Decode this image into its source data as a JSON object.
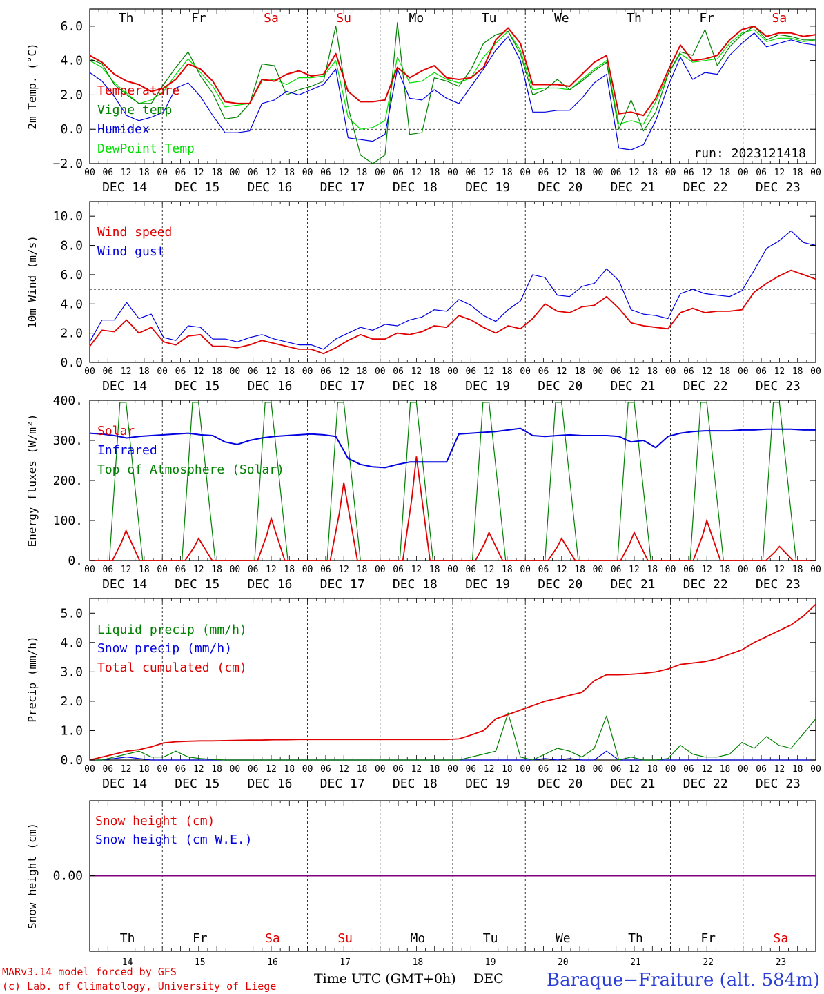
{
  "chart_data": [
    {
      "type": "line",
      "ylabel": "2m Temp. (°C)",
      "ylim": [
        -2,
        7
      ],
      "yticks": [
        "−2.0",
        "0.0",
        "2.0",
        "4.0",
        "6.0"
      ],
      "reference_line": 0,
      "annotation": "run: 2023121418",
      "x_unit": "hour since 2023-12-14 00 UTC (3-hourly)",
      "series": [
        {
          "name": "Temperature",
          "color": "#e00000",
          "values": [
            4.3,
            3.9,
            3.2,
            2.8,
            2.6,
            2.2,
            2.4,
            2.9,
            3.8,
            3.5,
            2.8,
            1.6,
            1.5,
            1.5,
            2.9,
            2.8,
            3.2,
            3.4,
            3.1,
            3.2,
            4.4,
            2.2,
            1.6,
            1.6,
            1.7,
            3.6,
            3.0,
            3.4,
            3.7,
            3.0,
            2.9,
            3.0,
            3.6,
            5.2,
            5.9,
            5.0,
            2.6,
            2.6,
            2.6,
            2.5,
            3.2,
            3.9,
            4.3,
            0.9,
            1.0,
            0.8,
            1.8,
            3.4,
            4.9,
            4.0,
            4.1,
            4.3,
            5.2,
            5.8,
            6.0,
            5.4,
            5.6,
            5.6,
            5.4,
            5.5
          ]
        },
        {
          "name": "Vigne temp",
          "color": "#008000",
          "values": [
            4.1,
            3.8,
            2.6,
            2.0,
            1.5,
            1.5,
            2.6,
            3.6,
            4.5,
            3.1,
            2.1,
            0.6,
            0.7,
            1.5,
            3.8,
            3.7,
            2.0,
            2.3,
            2.5,
            2.8,
            6.0,
            1.3,
            -1.5,
            -2.0,
            -1.5,
            6.2,
            -0.3,
            -0.2,
            3.0,
            2.8,
            2.5,
            3.5,
            5.0,
            5.5,
            5.7,
            4.4,
            2.0,
            2.3,
            2.9,
            2.3,
            2.8,
            3.4,
            3.9,
            0.0,
            1.7,
            -0.1,
            1.0,
            3.2,
            4.5,
            4.3,
            5.8,
            3.7,
            4.8,
            5.5,
            6.0,
            5.2,
            5.5,
            5.4,
            5.2,
            5.2
          ]
        },
        {
          "name": "Humidex",
          "color": "#0000e0",
          "values": [
            3.3,
            2.8,
            1.9,
            0.8,
            0.5,
            0.7,
            1.0,
            2.4,
            2.7,
            1.9,
            0.8,
            -0.2,
            -0.2,
            -0.1,
            1.5,
            1.7,
            2.2,
            2.0,
            2.3,
            2.6,
            3.5,
            -0.5,
            -0.6,
            -0.7,
            -0.3,
            3.5,
            1.8,
            1.7,
            2.3,
            1.8,
            1.5,
            2.5,
            3.5,
            4.6,
            5.4,
            4.0,
            1.0,
            1.0,
            1.1,
            1.1,
            1.8,
            2.7,
            3.2,
            -1.1,
            -1.2,
            -0.9,
            0.5,
            2.5,
            4.2,
            2.9,
            3.3,
            3.2,
            4.3,
            5.0,
            5.6,
            4.8,
            5.0,
            5.2,
            5.0,
            4.9
          ]
        },
        {
          "name": "DewPoint Temp",
          "color": "#00e000",
          "values": [
            4.0,
            3.6,
            2.7,
            2.1,
            1.5,
            1.7,
            2.2,
            3.2,
            4.1,
            3.3,
            2.5,
            1.3,
            1.4,
            1.5,
            2.8,
            2.9,
            2.6,
            3.0,
            3.0,
            3.1,
            4.0,
            0.7,
            0.0,
            0.1,
            0.5,
            4.2,
            2.7,
            2.8,
            3.3,
            2.9,
            2.7,
            3.0,
            4.2,
            5.0,
            5.7,
            4.6,
            2.3,
            2.4,
            2.4,
            2.3,
            2.9,
            3.5,
            4.0,
            0.3,
            0.5,
            0.3,
            1.6,
            3.2,
            4.4,
            3.9,
            4.0,
            4.1,
            5.0,
            5.6,
            5.8,
            5.1,
            5.3,
            5.3,
            5.1,
            5.2
          ]
        }
      ]
    },
    {
      "type": "line",
      "ylabel": "10m Wind (m/s)",
      "ylim": [
        0,
        11
      ],
      "yticks": [
        "0.0",
        "2.0",
        "4.0",
        "6.0",
        "8.0",
        "10.0"
      ],
      "reference_line": 5,
      "series": [
        {
          "name": "Wind speed",
          "color": "#e00000",
          "values": [
            1.1,
            2.2,
            2.1,
            2.9,
            2.0,
            2.4,
            1.4,
            1.2,
            1.8,
            1.9,
            1.1,
            1.1,
            1.0,
            1.2,
            1.5,
            1.3,
            1.1,
            0.9,
            0.9,
            0.6,
            1.0,
            1.5,
            1.9,
            1.6,
            1.6,
            2.0,
            1.9,
            2.1,
            2.5,
            2.4,
            3.2,
            2.9,
            2.4,
            2.0,
            2.5,
            2.3,
            3.0,
            4.0,
            3.5,
            3.4,
            3.8,
            3.9,
            4.5,
            3.7,
            2.7,
            2.5,
            2.4,
            2.3,
            3.4,
            3.7,
            3.4,
            3.5,
            3.5,
            3.6,
            4.8,
            5.4,
            5.9,
            6.3,
            6.0,
            5.7
          ]
        },
        {
          "name": "Wind gust",
          "color": "#0000e0",
          "values": [
            1.4,
            2.9,
            2.9,
            4.1,
            3.0,
            3.3,
            1.7,
            1.5,
            2.5,
            2.4,
            1.6,
            1.6,
            1.4,
            1.7,
            1.9,
            1.6,
            1.4,
            1.2,
            1.2,
            0.9,
            1.6,
            2.0,
            2.4,
            2.2,
            2.6,
            2.5,
            2.9,
            3.1,
            3.6,
            3.5,
            4.3,
            3.9,
            3.2,
            2.8,
            3.6,
            4.2,
            6.0,
            5.8,
            4.6,
            4.5,
            5.2,
            5.4,
            6.4,
            5.6,
            3.6,
            3.3,
            3.2,
            3.0,
            4.7,
            5.0,
            4.7,
            4.6,
            4.5,
            4.9,
            6.3,
            7.8,
            8.3,
            9.0,
            8.2,
            8.0
          ]
        }
      ]
    },
    {
      "type": "line",
      "ylabel": "Energy fluxes (W/m²)",
      "ylim": [
        0,
        400
      ],
      "yticks": [
        "0.",
        "100.",
        "200.",
        "300.",
        "400."
      ],
      "solar_peaks": [
        75,
        55,
        105,
        195,
        260,
        70,
        55,
        70,
        100,
        35
      ],
      "toa_peak": 395,
      "series": [
        {
          "name": "Solar",
          "color": "#e00000"
        },
        {
          "name": "Infrared",
          "color": "#0000e0",
          "values": [
            318,
            316,
            312,
            306,
            310,
            312,
            314,
            316,
            318,
            314,
            312,
            296,
            290,
            300,
            306,
            310,
            312,
            314,
            316,
            314,
            310,
            255,
            240,
            234,
            232,
            240,
            246,
            246,
            246,
            246,
            316,
            318,
            320,
            322,
            326,
            330,
            312,
            310,
            312,
            314,
            312,
            312,
            312,
            310,
            296,
            300,
            282,
            310,
            318,
            322,
            324,
            324,
            324,
            326,
            326,
            328,
            328,
            328,
            326,
            326
          ]
        },
        {
          "name": "Top of Atmosphere (Solar)",
          "color": "#008000"
        }
      ]
    },
    {
      "type": "line",
      "ylabel": "Precip (mm/h)",
      "ylim": [
        0,
        5.5
      ],
      "yticks": [
        "0.0",
        "1.0",
        "2.0",
        "3.0",
        "4.0",
        "5.0"
      ],
      "series": [
        {
          "name": "Liquid precip (mm/h)",
          "color": "#008000",
          "values": [
            0.0,
            0.0,
            0.1,
            0.2,
            0.3,
            0.1,
            0.1,
            0.3,
            0.1,
            0.05,
            0.02,
            0.0,
            0.0,
            0.0,
            0.0,
            0.0,
            0.0,
            0.0,
            0.0,
            0.0,
            0.0,
            0.0,
            0.0,
            0.0,
            0.0,
            0.0,
            0.0,
            0.0,
            0.0,
            0.0,
            0.0,
            0.1,
            0.2,
            0.3,
            1.6,
            0.1,
            0.0,
            0.2,
            0.4,
            0.3,
            0.1,
            0.4,
            1.5,
            0.0,
            0.1,
            0.0,
            0.0,
            0.05,
            0.5,
            0.2,
            0.1,
            0.1,
            0.2,
            0.6,
            0.4,
            0.8,
            0.5,
            0.4,
            0.9,
            1.4
          ]
        },
        {
          "name": "Snow precip (mm/h)",
          "color": "#0000e0",
          "values": [
            0.0,
            0.0,
            0.05,
            0.1,
            0.05,
            0.0,
            0.0,
            0.0,
            0.0,
            0.0,
            0.0,
            0.0,
            0.0,
            0.0,
            0.0,
            0.0,
            0.0,
            0.0,
            0.0,
            0.0,
            0.0,
            0.0,
            0.0,
            0.0,
            0.0,
            0.0,
            0.0,
            0.0,
            0.0,
            0.0,
            0.0,
            0.0,
            0.0,
            0.0,
            0.0,
            0.0,
            0.0,
            0.05,
            0.0,
            0.05,
            0.0,
            0.0,
            0.3,
            0.0,
            0.0,
            0.0,
            0.0,
            0.0,
            0.0,
            0.0,
            0.0,
            0.0,
            0.0,
            0.0,
            0.0,
            0.0,
            0.0,
            0.0,
            0.0,
            0.0
          ]
        },
        {
          "name": "Total cumulated (cm)",
          "color": "#e00000",
          "values": [
            0.0,
            0.1,
            0.2,
            0.3,
            0.35,
            0.45,
            0.58,
            0.62,
            0.64,
            0.65,
            0.65,
            0.66,
            0.67,
            0.68,
            0.68,
            0.69,
            0.69,
            0.7,
            0.7,
            0.7,
            0.7,
            0.7,
            0.7,
            0.7,
            0.7,
            0.7,
            0.7,
            0.7,
            0.7,
            0.7,
            0.72,
            0.85,
            1.0,
            1.4,
            1.55,
            1.7,
            1.85,
            2.0,
            2.1,
            2.2,
            2.3,
            2.7,
            2.9,
            2.9,
            2.92,
            2.95,
            3.0,
            3.1,
            3.25,
            3.3,
            3.35,
            3.45,
            3.6,
            3.75,
            4.0,
            4.2,
            4.4,
            4.6,
            4.9,
            5.3
          ]
        }
      ]
    },
    {
      "type": "line",
      "ylabel": "Snow height (cm)",
      "yticks": [
        "0.00"
      ],
      "series": [
        {
          "name": "Snow height (cm)",
          "color": "#e00000",
          "values": [
            0,
            0
          ]
        },
        {
          "name": "Snow height (cm W.E.)",
          "color": "#0000e0",
          "values": [
            0,
            0
          ]
        }
      ]
    }
  ],
  "axis": {
    "days": [
      "Th",
      "Fr",
      "Sa",
      "Su",
      "Mo",
      "Tu",
      "We",
      "Th",
      "Fr",
      "Sa"
    ],
    "weekend_flags": [
      false,
      false,
      true,
      true,
      false,
      false,
      false,
      false,
      false,
      true
    ],
    "dates": [
      "DEC 14",
      "DEC 15",
      "DEC 16",
      "DEC 17",
      "DEC 18",
      "DEC 19",
      "DEC 20",
      "DEC 21",
      "DEC 22",
      "DEC 23"
    ],
    "hours": [
      "00",
      "06",
      "12",
      "18"
    ],
    "last_hour": "00",
    "day_numbers": [
      "14",
      "15",
      "16",
      "17",
      "18",
      "19",
      "20",
      "21",
      "22",
      "23"
    ],
    "time_label": "Time UTC (GMT+0h)",
    "month_label": "DEC"
  },
  "footer": {
    "model": "MARv3.14 model forced by GFS",
    "lab": "(c) Lab. of Climatology, University of Liege",
    "station": "Baraque−Fraiture (alt. 584m)"
  },
  "colors": {
    "red": "#e00000",
    "green": "#008000",
    "blue": "#0000e0",
    "lightgreen": "#00e000",
    "weekend": "#e00000",
    "purple": "#800080"
  }
}
